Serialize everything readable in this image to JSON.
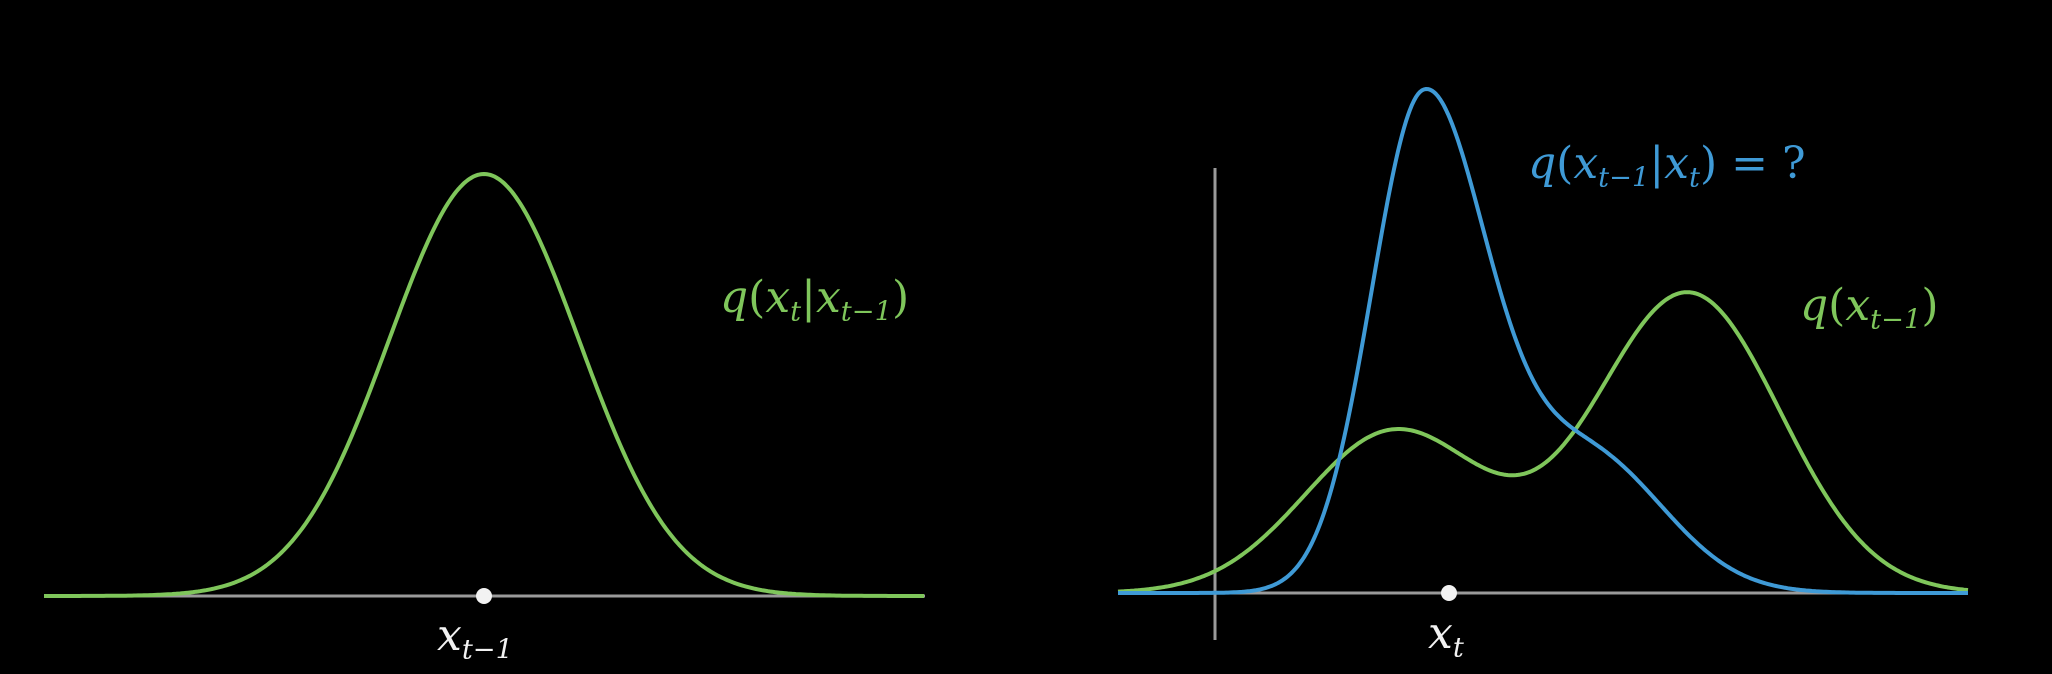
{
  "colors": {
    "background": "#000000",
    "green_curve": "#7fc65b",
    "blue_curve": "#3f9ad6",
    "axis": "#9a9a9a",
    "point": "#f2f2f2"
  },
  "left_panel": {
    "curve_label": {
      "fn": "q",
      "open": "(",
      "var": "x",
      "var_sub": "t",
      "bar": "|",
      "cond": "x",
      "cond_sub": "t−1",
      "close": ")"
    },
    "point_label": {
      "var": "x",
      "sub": "t−1"
    }
  },
  "right_panel": {
    "blue_label": {
      "fn": "q",
      "open": "(",
      "var": "x",
      "var_sub": "t−1",
      "bar": "|",
      "cond": "x",
      "cond_sub": "t",
      "close": ")",
      "equals": "= ?"
    },
    "green_label": {
      "fn": "q",
      "open": "(",
      "var": "x",
      "var_sub": "t−1",
      "close": ")"
    },
    "point_label": {
      "var": "x",
      "sub": "t"
    }
  }
}
